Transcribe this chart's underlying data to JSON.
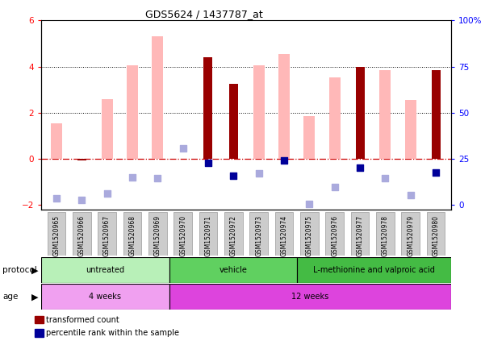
{
  "title": "GDS5624 / 1437787_at",
  "samples": [
    "GSM1520965",
    "GSM1520966",
    "GSM1520967",
    "GSM1520968",
    "GSM1520969",
    "GSM1520970",
    "GSM1520971",
    "GSM1520972",
    "GSM1520973",
    "GSM1520974",
    "GSM1520975",
    "GSM1520976",
    "GSM1520977",
    "GSM1520978",
    "GSM1520979",
    "GSM1520980"
  ],
  "dark_red_bars": [
    null,
    -0.08,
    null,
    null,
    null,
    null,
    4.4,
    3.25,
    null,
    null,
    null,
    null,
    4.0,
    null,
    null,
    3.85
  ],
  "pink_bars": [
    1.55,
    null,
    2.6,
    4.05,
    5.3,
    null,
    null,
    null,
    4.05,
    4.55,
    1.85,
    3.55,
    null,
    3.85,
    2.55,
    null
  ],
  "dark_blue_squares": [
    null,
    null,
    null,
    null,
    null,
    null,
    -0.18,
    -0.72,
    null,
    -0.07,
    null,
    null,
    -0.38,
    null,
    null,
    -0.6
  ],
  "light_blue_squares": [
    -1.72,
    -1.78,
    -1.5,
    -0.8,
    -0.82,
    0.45,
    null,
    null,
    -0.62,
    null,
    -1.95,
    -1.2,
    null,
    -0.85,
    -1.55,
    null
  ],
  "ylim": [
    -2.2,
    6.0
  ],
  "yticks_left": [
    -2,
    0,
    2,
    4,
    6
  ],
  "yticks_right": [
    0,
    25,
    50,
    75,
    100
  ],
  "protocol_groups": [
    {
      "label": "untreated",
      "start": 0,
      "end": 5,
      "color": "#b8f0b8"
    },
    {
      "label": "vehicle",
      "start": 5,
      "end": 10,
      "color": "#60d060"
    },
    {
      "label": "L-methionine and valproic acid",
      "start": 10,
      "end": 16,
      "color": "#44bb44"
    }
  ],
  "age_groups": [
    {
      "label": "4 weeks",
      "start": 0,
      "end": 5,
      "color": "#f0a0f0"
    },
    {
      "label": "12 weeks",
      "start": 5,
      "end": 16,
      "color": "#dd44dd"
    }
  ],
  "dark_red_color": "#990000",
  "pink_color": "#ffb8b8",
  "dark_blue_color": "#000099",
  "light_blue_color": "#aaaadd",
  "hline_color": "#cc0000",
  "square_size": 28
}
